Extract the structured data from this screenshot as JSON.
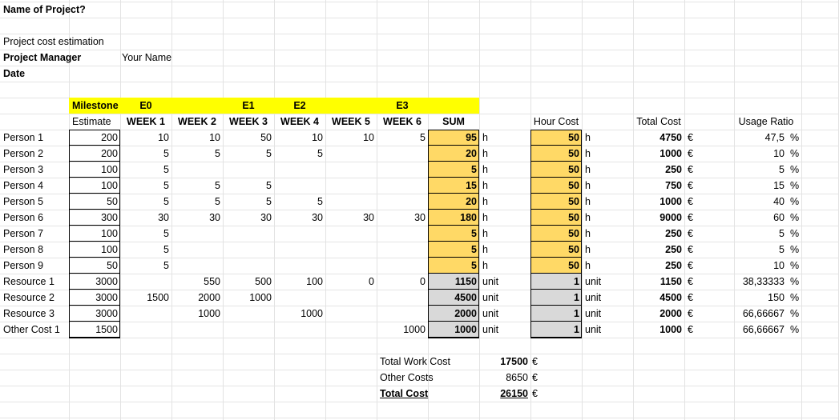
{
  "project": {
    "title": "Name of Project?",
    "subtitle": "Project cost estimation",
    "manager_label": "Project Manager",
    "manager_value": "Your Name",
    "date_label": "Date"
  },
  "milestones": {
    "label": "Milestone",
    "E0": "E0",
    "E1": "E1",
    "E2": "E2",
    "E3": "E3"
  },
  "headers": {
    "estimate": "Estimate",
    "weeks": [
      "WEEK 1",
      "WEEK 2",
      "WEEK 3",
      "WEEK 4",
      "WEEK 5",
      "WEEK 6"
    ],
    "sum": "SUM",
    "hour_cost": "Hour Cost",
    "total_cost": "Total Cost",
    "usage_ratio": "Usage Ratio"
  },
  "rows": [
    {
      "name": "Person 1",
      "estimate": "200",
      "weeks": [
        "10",
        "10",
        "50",
        "10",
        "10",
        "5"
      ],
      "sum": "95",
      "sum_unit": "h",
      "cost": "50",
      "cost_unit": "h",
      "total": "4750",
      "cur": "€",
      "ratio": "47,5",
      "pct": "%"
    },
    {
      "name": "Person 2",
      "estimate": "200",
      "weeks": [
        "5",
        "5",
        "5",
        "5",
        "",
        ""
      ],
      "sum": "20",
      "sum_unit": "h",
      "cost": "50",
      "cost_unit": "h",
      "total": "1000",
      "cur": "€",
      "ratio": "10",
      "pct": "%"
    },
    {
      "name": "Person 3",
      "estimate": "100",
      "weeks": [
        "5",
        "",
        "",
        "",
        "",
        ""
      ],
      "sum": "5",
      "sum_unit": "h",
      "cost": "50",
      "cost_unit": "h",
      "total": "250",
      "cur": "€",
      "ratio": "5",
      "pct": "%"
    },
    {
      "name": "Person 4",
      "estimate": "100",
      "weeks": [
        "5",
        "5",
        "5",
        "",
        "",
        ""
      ],
      "sum": "15",
      "sum_unit": "h",
      "cost": "50",
      "cost_unit": "h",
      "total": "750",
      "cur": "€",
      "ratio": "15",
      "pct": "%"
    },
    {
      "name": "Person 5",
      "estimate": "50",
      "weeks": [
        "5",
        "5",
        "5",
        "5",
        "",
        ""
      ],
      "sum": "20",
      "sum_unit": "h",
      "cost": "50",
      "cost_unit": "h",
      "total": "1000",
      "cur": "€",
      "ratio": "40",
      "pct": "%"
    },
    {
      "name": "Person 6",
      "estimate": "300",
      "weeks": [
        "30",
        "30",
        "30",
        "30",
        "30",
        "30"
      ],
      "sum": "180",
      "sum_unit": "h",
      "cost": "50",
      "cost_unit": "h",
      "total": "9000",
      "cur": "€",
      "ratio": "60",
      "pct": "%"
    },
    {
      "name": "Person 7",
      "estimate": "100",
      "weeks": [
        "5",
        "",
        "",
        "",
        "",
        ""
      ],
      "sum": "5",
      "sum_unit": "h",
      "cost": "50",
      "cost_unit": "h",
      "total": "250",
      "cur": "€",
      "ratio": "5",
      "pct": "%"
    },
    {
      "name": "Person 8",
      "estimate": "100",
      "weeks": [
        "5",
        "",
        "",
        "",
        "",
        ""
      ],
      "sum": "5",
      "sum_unit": "h",
      "cost": "50",
      "cost_unit": "h",
      "total": "250",
      "cur": "€",
      "ratio": "5",
      "pct": "%"
    },
    {
      "name": "Person 9",
      "estimate": "50",
      "weeks": [
        "5",
        "",
        "",
        "",
        "",
        ""
      ],
      "sum": "5",
      "sum_unit": "h",
      "cost": "50",
      "cost_unit": "h",
      "total": "250",
      "cur": "€",
      "ratio": "10",
      "pct": "%"
    },
    {
      "name": "Resource 1",
      "estimate": "3000",
      "weeks": [
        "",
        "550",
        "500",
        "100",
        "0",
        "0"
      ],
      "sum": "1150",
      "sum_unit": "unit",
      "cost": "1",
      "cost_unit": "unit",
      "total": "1150",
      "cur": "€",
      "ratio": "38,33333",
      "pct": "%"
    },
    {
      "name": "Resource 2",
      "estimate": "3000",
      "weeks": [
        "1500",
        "2000",
        "1000",
        "",
        "",
        ""
      ],
      "sum": "4500",
      "sum_unit": "unit",
      "cost": "1",
      "cost_unit": "unit",
      "total": "4500",
      "cur": "€",
      "ratio": "150",
      "pct": "%"
    },
    {
      "name": "Resource 3",
      "estimate": "3000",
      "weeks": [
        "",
        "1000",
        "",
        "1000",
        "",
        ""
      ],
      "sum": "2000",
      "sum_unit": "unit",
      "cost": "1",
      "cost_unit": "unit",
      "total": "2000",
      "cur": "€",
      "ratio": "66,66667",
      "pct": "%"
    },
    {
      "name": "Other Cost 1",
      "estimate": "1500",
      "weeks": [
        "",
        "",
        "",
        "",
        "",
        "1000"
      ],
      "sum": "1000",
      "sum_unit": "unit",
      "cost": "1",
      "cost_unit": "unit",
      "total": "1000",
      "cur": "€",
      "ratio": "66,66667",
      "pct": "%"
    }
  ],
  "summary": {
    "work_label": "Total Work Cost",
    "work_value": "17500",
    "other_label": "Other Costs",
    "other_value": "8650",
    "total_label": "Total Cost",
    "total_value": "26150",
    "currency": "€"
  },
  "colors": {
    "milestone_band": "#ffff00",
    "hours_fill": "#ffd966",
    "units_fill": "#d9d9d9",
    "gridline": "#e3e3e3"
  }
}
